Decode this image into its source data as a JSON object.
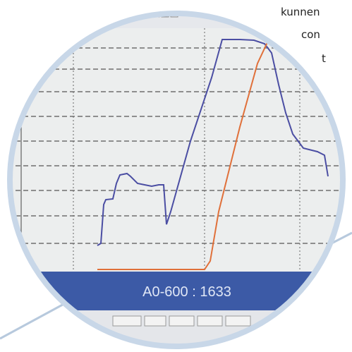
{
  "side_text": [
    "kunnen",
    "con",
    "t"
  ],
  "readout": "A0-600 : 1633"
}
